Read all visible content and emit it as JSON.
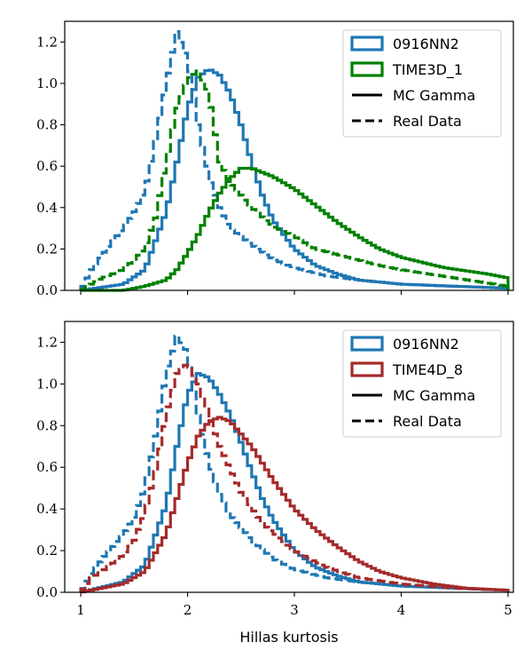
{
  "chart_data": [
    {
      "type": "step",
      "panel": "top",
      "xlabel": "",
      "ylabel": "",
      "xlim": [
        0.85,
        5.05
      ],
      "ylim": [
        0,
        1.3
      ],
      "x_ticks": [
        1,
        2,
        3,
        4,
        5
      ],
      "x_tick_labels_shown": false,
      "y_ticks": [
        0.0,
        0.2,
        0.4,
        0.6,
        0.8,
        1.0,
        1.2
      ],
      "y_tick_labels": [
        "0.0",
        "0.2",
        "0.4",
        "0.6",
        "0.8",
        "1.0",
        "1.2"
      ],
      "legend": {
        "position": "upper-right",
        "entries": [
          {
            "label": "0916NN2",
            "kind": "patch",
            "color": "#1f77b4"
          },
          {
            "label": "TIME3D_1",
            "kind": "patch",
            "color": "#008000"
          },
          {
            "label": "MC Gamma",
            "kind": "line",
            "dash": "solid",
            "color": "#000000"
          },
          {
            "label": "Real Data",
            "kind": "line",
            "dash": "dashed",
            "color": "#000000"
          }
        ]
      },
      "series": [
        {
          "model": "0916NN2",
          "sample": "MC Gamma",
          "color": "#1f77b4",
          "dash": "solid",
          "x": [
            1.0,
            1.4,
            1.6,
            1.8,
            1.9,
            2.0,
            2.1,
            2.2,
            2.3,
            2.4,
            2.5,
            2.6,
            2.7,
            2.8,
            3.0,
            3.2,
            3.4,
            3.6,
            3.8,
            4.0,
            4.5,
            5.0
          ],
          "y": [
            0.0,
            0.03,
            0.1,
            0.38,
            0.62,
            0.88,
            1.03,
            1.07,
            1.04,
            0.95,
            0.8,
            0.62,
            0.46,
            0.34,
            0.2,
            0.12,
            0.08,
            0.05,
            0.04,
            0.03,
            0.02,
            0.01
          ]
        },
        {
          "model": "0916NN2",
          "sample": "Real Data",
          "color": "#1f77b4",
          "dash": "dashed",
          "x": [
            1.0,
            1.1,
            1.2,
            1.3,
            1.4,
            1.5,
            1.6,
            1.7,
            1.8,
            1.9,
            2.0,
            2.1,
            2.2,
            2.3,
            2.4,
            2.6,
            2.8,
            3.0,
            3.3,
            3.6,
            4.0,
            4.5,
            5.0
          ],
          "y": [
            0.0,
            0.1,
            0.17,
            0.24,
            0.3,
            0.38,
            0.48,
            0.72,
            1.0,
            1.25,
            1.12,
            0.8,
            0.55,
            0.4,
            0.3,
            0.22,
            0.15,
            0.11,
            0.07,
            0.05,
            0.03,
            0.02,
            0.01
          ]
        },
        {
          "model": "TIME3D_1",
          "sample": "MC Gamma",
          "color": "#008000",
          "dash": "solid",
          "x": [
            1.0,
            1.4,
            1.6,
            1.8,
            1.9,
            2.0,
            2.1,
            2.2,
            2.3,
            2.4,
            2.5,
            2.6,
            2.8,
            3.0,
            3.2,
            3.4,
            3.6,
            3.8,
            4.0,
            4.4,
            4.8,
            5.0
          ],
          "y": [
            0.0,
            0.0,
            0.02,
            0.05,
            0.1,
            0.18,
            0.27,
            0.38,
            0.47,
            0.54,
            0.59,
            0.59,
            0.55,
            0.49,
            0.41,
            0.33,
            0.26,
            0.2,
            0.16,
            0.11,
            0.08,
            0.06
          ]
        },
        {
          "model": "TIME3D_1",
          "sample": "Real Data",
          "color": "#008000",
          "dash": "dashed",
          "x": [
            1.0,
            1.2,
            1.4,
            1.6,
            1.7,
            1.8,
            1.9,
            2.0,
            2.1,
            2.2,
            2.3,
            2.4,
            2.6,
            2.8,
            3.0,
            3.2,
            3.5,
            3.8,
            4.0,
            4.5,
            5.0
          ],
          "y": [
            0.0,
            0.06,
            0.1,
            0.2,
            0.35,
            0.62,
            0.88,
            1.02,
            1.06,
            0.95,
            0.62,
            0.52,
            0.4,
            0.31,
            0.26,
            0.2,
            0.16,
            0.12,
            0.1,
            0.06,
            0.02
          ]
        }
      ]
    },
    {
      "type": "step",
      "panel": "bottom",
      "xlabel": "Hillas kurtosis",
      "ylabel": "",
      "xlim": [
        0.85,
        5.05
      ],
      "ylim": [
        0,
        1.3
      ],
      "x_ticks": [
        1,
        2,
        3,
        4,
        5
      ],
      "x_tick_labels": [
        "1",
        "2",
        "3",
        "4",
        "5"
      ],
      "y_ticks": [
        0.0,
        0.2,
        0.4,
        0.6,
        0.8,
        1.0,
        1.2
      ],
      "y_tick_labels": [
        "0.0",
        "0.2",
        "0.4",
        "0.6",
        "0.8",
        "1.0",
        "1.2"
      ],
      "legend": {
        "position": "upper-right",
        "entries": [
          {
            "label": "0916NN2",
            "kind": "patch",
            "color": "#1f77b4"
          },
          {
            "label": "TIME4D_8",
            "kind": "patch",
            "color": "#a52a2a"
          },
          {
            "label": "MC Gamma",
            "kind": "line",
            "dash": "solid",
            "color": "#000000"
          },
          {
            "label": "Real Data",
            "kind": "line",
            "dash": "dashed",
            "color": "#000000"
          }
        ]
      },
      "series": [
        {
          "model": "0916NN2",
          "sample": "MC Gamma",
          "color": "#1f77b4",
          "dash": "solid",
          "x": [
            1.0,
            1.4,
            1.6,
            1.8,
            1.9,
            2.0,
            2.1,
            2.2,
            2.3,
            2.4,
            2.5,
            2.6,
            2.7,
            2.8,
            3.0,
            3.2,
            3.4,
            3.6,
            3.8,
            4.0,
            4.5,
            5.0
          ],
          "y": [
            0.0,
            0.05,
            0.13,
            0.42,
            0.7,
            0.95,
            1.05,
            1.03,
            0.95,
            0.85,
            0.72,
            0.58,
            0.45,
            0.35,
            0.2,
            0.12,
            0.08,
            0.05,
            0.04,
            0.03,
            0.02,
            0.01
          ]
        },
        {
          "model": "0916NN2",
          "sample": "Real Data",
          "color": "#1f77b4",
          "dash": "dashed",
          "x": [
            1.0,
            1.1,
            1.2,
            1.3,
            1.4,
            1.5,
            1.6,
            1.7,
            1.8,
            1.9,
            2.0,
            2.1,
            2.2,
            2.3,
            2.4,
            2.6,
            2.8,
            3.0,
            3.3,
            3.6,
            4.0,
            4.5,
            5.0
          ],
          "y": [
            0.0,
            0.09,
            0.16,
            0.22,
            0.28,
            0.36,
            0.5,
            0.75,
            1.05,
            1.23,
            1.15,
            0.85,
            0.62,
            0.47,
            0.37,
            0.25,
            0.16,
            0.11,
            0.07,
            0.05,
            0.03,
            0.02,
            0.01
          ]
        },
        {
          "model": "TIME4D_8",
          "sample": "MC Gamma",
          "color": "#a52a2a",
          "dash": "solid",
          "x": [
            1.0,
            1.4,
            1.6,
            1.8,
            1.9,
            2.0,
            2.1,
            2.2,
            2.3,
            2.4,
            2.5,
            2.6,
            2.8,
            3.0,
            3.2,
            3.4,
            3.6,
            3.8,
            4.0,
            4.3,
            4.6,
            5.0
          ],
          "y": [
            0.0,
            0.04,
            0.1,
            0.28,
            0.45,
            0.62,
            0.75,
            0.82,
            0.84,
            0.82,
            0.76,
            0.7,
            0.54,
            0.4,
            0.3,
            0.22,
            0.15,
            0.1,
            0.07,
            0.04,
            0.02,
            0.01
          ]
        },
        {
          "model": "TIME4D_8",
          "sample": "Real Data",
          "color": "#a52a2a",
          "dash": "dashed",
          "x": [
            1.0,
            1.1,
            1.2,
            1.3,
            1.4,
            1.5,
            1.6,
            1.7,
            1.8,
            1.9,
            2.0,
            2.1,
            2.2,
            2.3,
            2.5,
            2.7,
            3.0,
            3.3,
            3.6,
            4.0,
            4.5,
            5.0
          ],
          "y": [
            0.0,
            0.07,
            0.1,
            0.14,
            0.18,
            0.25,
            0.38,
            0.58,
            0.85,
            1.05,
            1.1,
            1.0,
            0.85,
            0.7,
            0.48,
            0.33,
            0.2,
            0.12,
            0.07,
            0.04,
            0.02,
            0.01
          ]
        }
      ]
    }
  ]
}
